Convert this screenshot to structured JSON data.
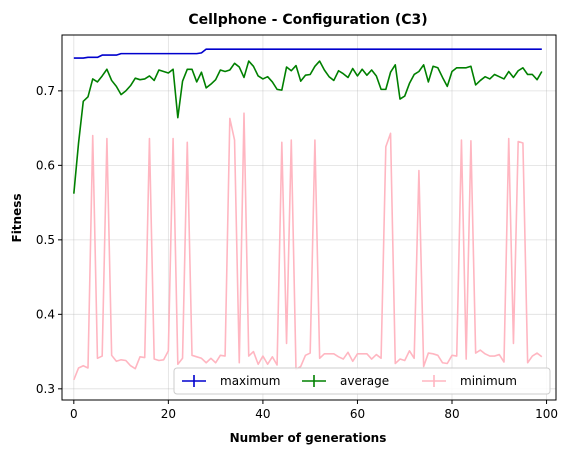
{
  "chart_data": {
    "type": "line",
    "title": "Cellphone - Configuration (C3)",
    "xlabel": "Number of generations",
    "ylabel": "Fitness",
    "xlim": [
      -2.5,
      102
    ],
    "ylim": [
      0.285,
      0.775
    ],
    "xticks": [
      0,
      20,
      40,
      60,
      80,
      100
    ],
    "yticks": [
      0.3,
      0.4,
      0.5,
      0.6,
      0.7
    ],
    "grid": true,
    "legend": {
      "placement": "bottom-right",
      "columns": 3
    },
    "series": [
      {
        "name": "maximum",
        "color": "#0000cd",
        "values": [
          0.744,
          0.744,
          0.744,
          0.745,
          0.745,
          0.745,
          0.748,
          0.748,
          0.748,
          0.748,
          0.75,
          0.75,
          0.75,
          0.75,
          0.75,
          0.75,
          0.75,
          0.75,
          0.75,
          0.75,
          0.75,
          0.75,
          0.75,
          0.75,
          0.75,
          0.75,
          0.75,
          0.751,
          0.756,
          0.756,
          0.756,
          0.756,
          0.756,
          0.756,
          0.756,
          0.756,
          0.756,
          0.756,
          0.756,
          0.756,
          0.756,
          0.756,
          0.756,
          0.756,
          0.756,
          0.756,
          0.756,
          0.756,
          0.756,
          0.756,
          0.756,
          0.756,
          0.756,
          0.756,
          0.756,
          0.756,
          0.756,
          0.756,
          0.756,
          0.756,
          0.756,
          0.756,
          0.756,
          0.756,
          0.756,
          0.756,
          0.756,
          0.756,
          0.756,
          0.756,
          0.756,
          0.756,
          0.756,
          0.756,
          0.756,
          0.756,
          0.756,
          0.756,
          0.756,
          0.756,
          0.756,
          0.756,
          0.756,
          0.756,
          0.756,
          0.756,
          0.756,
          0.756,
          0.756,
          0.756,
          0.756,
          0.756,
          0.756,
          0.756,
          0.756,
          0.756,
          0.756,
          0.756,
          0.756,
          0.756
        ]
      },
      {
        "name": "average",
        "color": "#008000",
        "values": [
          0.562,
          0.63,
          0.686,
          0.692,
          0.716,
          0.712,
          0.72,
          0.729,
          0.714,
          0.706,
          0.695,
          0.7,
          0.707,
          0.717,
          0.715,
          0.716,
          0.72,
          0.714,
          0.728,
          0.726,
          0.724,
          0.729,
          0.664,
          0.713,
          0.729,
          0.729,
          0.712,
          0.725,
          0.704,
          0.709,
          0.715,
          0.728,
          0.726,
          0.728,
          0.737,
          0.732,
          0.718,
          0.74,
          0.733,
          0.72,
          0.716,
          0.719,
          0.712,
          0.702,
          0.701,
          0.732,
          0.727,
          0.734,
          0.713,
          0.721,
          0.722,
          0.733,
          0.74,
          0.728,
          0.719,
          0.714,
          0.727,
          0.723,
          0.718,
          0.73,
          0.72,
          0.729,
          0.721,
          0.728,
          0.72,
          0.702,
          0.702,
          0.725,
          0.735,
          0.689,
          0.693,
          0.71,
          0.722,
          0.726,
          0.735,
          0.712,
          0.733,
          0.731,
          0.718,
          0.706,
          0.726,
          0.731,
          0.731,
          0.731,
          0.733,
          0.708,
          0.714,
          0.719,
          0.716,
          0.722,
          0.719,
          0.716,
          0.726,
          0.718,
          0.727,
          0.731,
          0.722,
          0.722,
          0.715,
          0.726
        ]
      },
      {
        "name": "minimum",
        "color": "#ffb6c1",
        "values": [
          0.312,
          0.328,
          0.331,
          0.328,
          0.64,
          0.341,
          0.344,
          0.636,
          0.345,
          0.337,
          0.339,
          0.338,
          0.331,
          0.327,
          0.343,
          0.342,
          0.636,
          0.34,
          0.338,
          0.339,
          0.351,
          0.636,
          0.333,
          0.341,
          0.631,
          0.345,
          0.343,
          0.341,
          0.335,
          0.341,
          0.335,
          0.345,
          0.344,
          0.663,
          0.634,
          0.335,
          0.67,
          0.344,
          0.35,
          0.333,
          0.344,
          0.333,
          0.343,
          0.332,
          0.631,
          0.361,
          0.634,
          0.326,
          0.33,
          0.345,
          0.348,
          0.634,
          0.341,
          0.347,
          0.347,
          0.347,
          0.343,
          0.34,
          0.349,
          0.337,
          0.347,
          0.347,
          0.347,
          0.34,
          0.346,
          0.341,
          0.625,
          0.643,
          0.334,
          0.34,
          0.338,
          0.351,
          0.341,
          0.593,
          0.33,
          0.348,
          0.347,
          0.345,
          0.335,
          0.334,
          0.345,
          0.344,
          0.634,
          0.34,
          0.633,
          0.348,
          0.352,
          0.347,
          0.344,
          0.344,
          0.346,
          0.336,
          0.636,
          0.361,
          0.632,
          0.63,
          0.335,
          0.344,
          0.348,
          0.343
        ]
      }
    ]
  }
}
